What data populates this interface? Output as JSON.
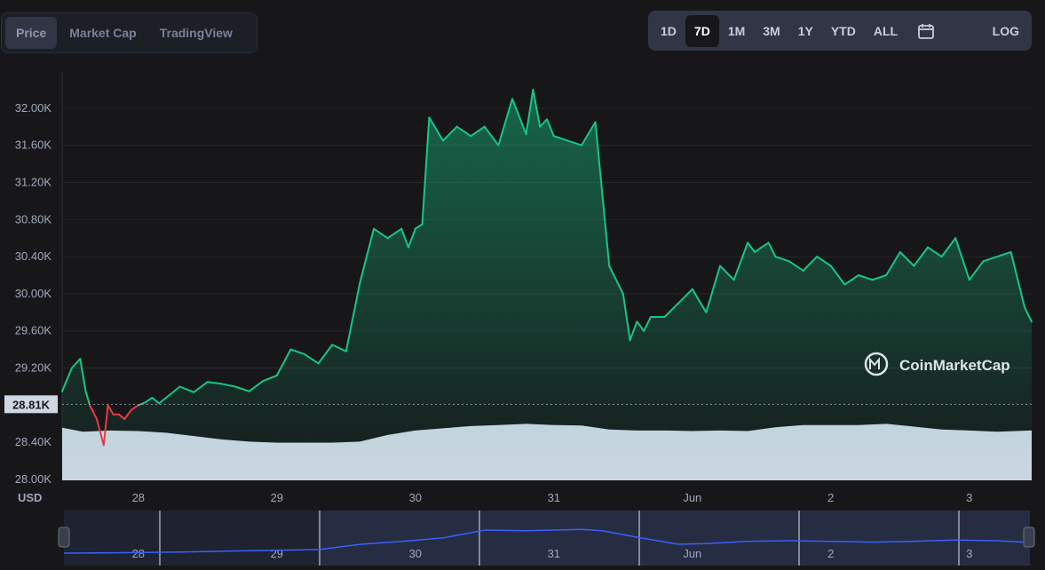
{
  "tabs": [
    {
      "label": "Price",
      "active": true
    },
    {
      "label": "Market Cap",
      "active": false
    },
    {
      "label": "TradingView",
      "active": false
    }
  ],
  "ranges": [
    {
      "label": "1D",
      "active": false
    },
    {
      "label": "7D",
      "active": true
    },
    {
      "label": "1M",
      "active": false
    },
    {
      "label": "3M",
      "active": false
    },
    {
      "label": "1Y",
      "active": false
    },
    {
      "label": "YTD",
      "active": false
    },
    {
      "label": "ALL",
      "active": false
    }
  ],
  "calendar_icon": "calendar-icon",
  "log_label": "LOG",
  "currency_label": "USD",
  "watermark": "CoinMarketCap",
  "colors": {
    "up": "#16c784",
    "down": "#ea3943",
    "volume": "#cfd6e4",
    "navigator": "#3861fb"
  },
  "chart_data": {
    "type": "line",
    "ylim": [
      28000,
      32400
    ],
    "yticks": [
      "32.00K",
      "31.60K",
      "31.20K",
      "30.80K",
      "30.40K",
      "30.00K",
      "29.60K",
      "29.20K",
      "28.40K",
      "28.00K"
    ],
    "ytick_values": [
      32000,
      31600,
      31200,
      30800,
      30400,
      30000,
      29600,
      29200,
      28400,
      28000
    ],
    "xticks": [
      "28",
      "29",
      "30",
      "31",
      "Jun",
      "2",
      "3"
    ],
    "xlim": [
      -0.55,
      6.45
    ],
    "reference_price": 28810,
    "reference_label": "28.81K",
    "series": [
      {
        "x": [
          -0.55,
          -0.48,
          -0.42,
          -0.38,
          -0.35,
          -0.3,
          -0.25,
          -0.22,
          -0.18,
          -0.14,
          -0.1,
          -0.05,
          0,
          0.05,
          0.1,
          0.15,
          0.2,
          0.3,
          0.4,
          0.5,
          0.6,
          0.7,
          0.8,
          0.9,
          1.0,
          1.1,
          1.2,
          1.3,
          1.4,
          1.5,
          1.6,
          1.7,
          1.8,
          1.9,
          1.95,
          2.0,
          2.05,
          2.1,
          2.2,
          2.3,
          2.4,
          2.5,
          2.6,
          2.7,
          2.8,
          2.85,
          2.9,
          2.95,
          3.0,
          3.1,
          3.2,
          3.3,
          3.4,
          3.5,
          3.55,
          3.6,
          3.65,
          3.7,
          3.8,
          3.9,
          4.0,
          4.1,
          4.2,
          4.3,
          4.4,
          4.45,
          4.5,
          4.55,
          4.6,
          4.7,
          4.8,
          4.9,
          5.0,
          5.1,
          5.2,
          5.3,
          5.4,
          5.5,
          5.6,
          5.7,
          5.8,
          5.9,
          6.0,
          6.1,
          6.2,
          6.3,
          6.4,
          6.45
        ],
        "values": [
          28950,
          29200,
          29300,
          28950,
          28800,
          28650,
          28370,
          28800,
          28700,
          28700,
          28650,
          28750,
          28800,
          28830,
          28880,
          28820,
          28880,
          29000,
          28940,
          29050,
          29030,
          29000,
          28950,
          29060,
          29120,
          29400,
          29350,
          29250,
          29450,
          29380,
          30120,
          30700,
          30600,
          30700,
          30500,
          30700,
          30750,
          31900,
          31650,
          31800,
          31700,
          31800,
          31600,
          32100,
          31720,
          32200,
          31800,
          31880,
          31700,
          31650,
          31600,
          31850,
          30300,
          30000,
          29500,
          29700,
          29600,
          29750,
          29750,
          29900,
          30050,
          29800,
          30300,
          30150,
          30550,
          30450,
          30500,
          30550,
          30400,
          30350,
          30250,
          30400,
          30300,
          30100,
          30200,
          30150,
          30200,
          30450,
          30300,
          30500,
          30400,
          30600,
          30150,
          30350,
          30400,
          30450,
          29850,
          29700
        ]
      }
    ],
    "volume": {
      "x": [
        -0.55,
        -0.4,
        -0.2,
        0,
        0.2,
        0.4,
        0.6,
        0.8,
        1.0,
        1.2,
        1.4,
        1.6,
        1.8,
        2.0,
        2.2,
        2.4,
        2.6,
        2.8,
        3.0,
        3.2,
        3.4,
        3.6,
        3.8,
        4.0,
        4.2,
        4.4,
        4.6,
        4.8,
        5.0,
        5.2,
        5.4,
        5.6,
        5.8,
        6.0,
        6.2,
        6.45
      ],
      "values": [
        0.95,
        0.88,
        0.9,
        0.89,
        0.86,
        0.8,
        0.74,
        0.7,
        0.68,
        0.68,
        0.68,
        0.7,
        0.82,
        0.9,
        0.94,
        0.98,
        1.0,
        1.02,
        1.0,
        0.99,
        0.92,
        0.9,
        0.9,
        0.89,
        0.9,
        0.89,
        0.96,
        1.0,
        1.0,
        1.0,
        1.02,
        0.97,
        0.92,
        0.9,
        0.88,
        0.9
      ]
    },
    "navigator": {
      "x": [
        -0.55,
        -0.2,
        0.3,
        0.8,
        1.3,
        1.6,
        1.9,
        2.2,
        2.5,
        2.8,
        3.0,
        3.2,
        3.35,
        3.6,
        3.9,
        4.1,
        4.4,
        4.7,
        5.0,
        5.3,
        5.6,
        5.9,
        6.2,
        6.45
      ],
      "values": [
        0.15,
        0.16,
        0.18,
        0.22,
        0.25,
        0.4,
        0.48,
        0.58,
        0.8,
        0.78,
        0.8,
        0.82,
        0.78,
        0.6,
        0.4,
        0.42,
        0.48,
        0.5,
        0.48,
        0.46,
        0.48,
        0.52,
        0.5,
        0.45
      ]
    }
  }
}
